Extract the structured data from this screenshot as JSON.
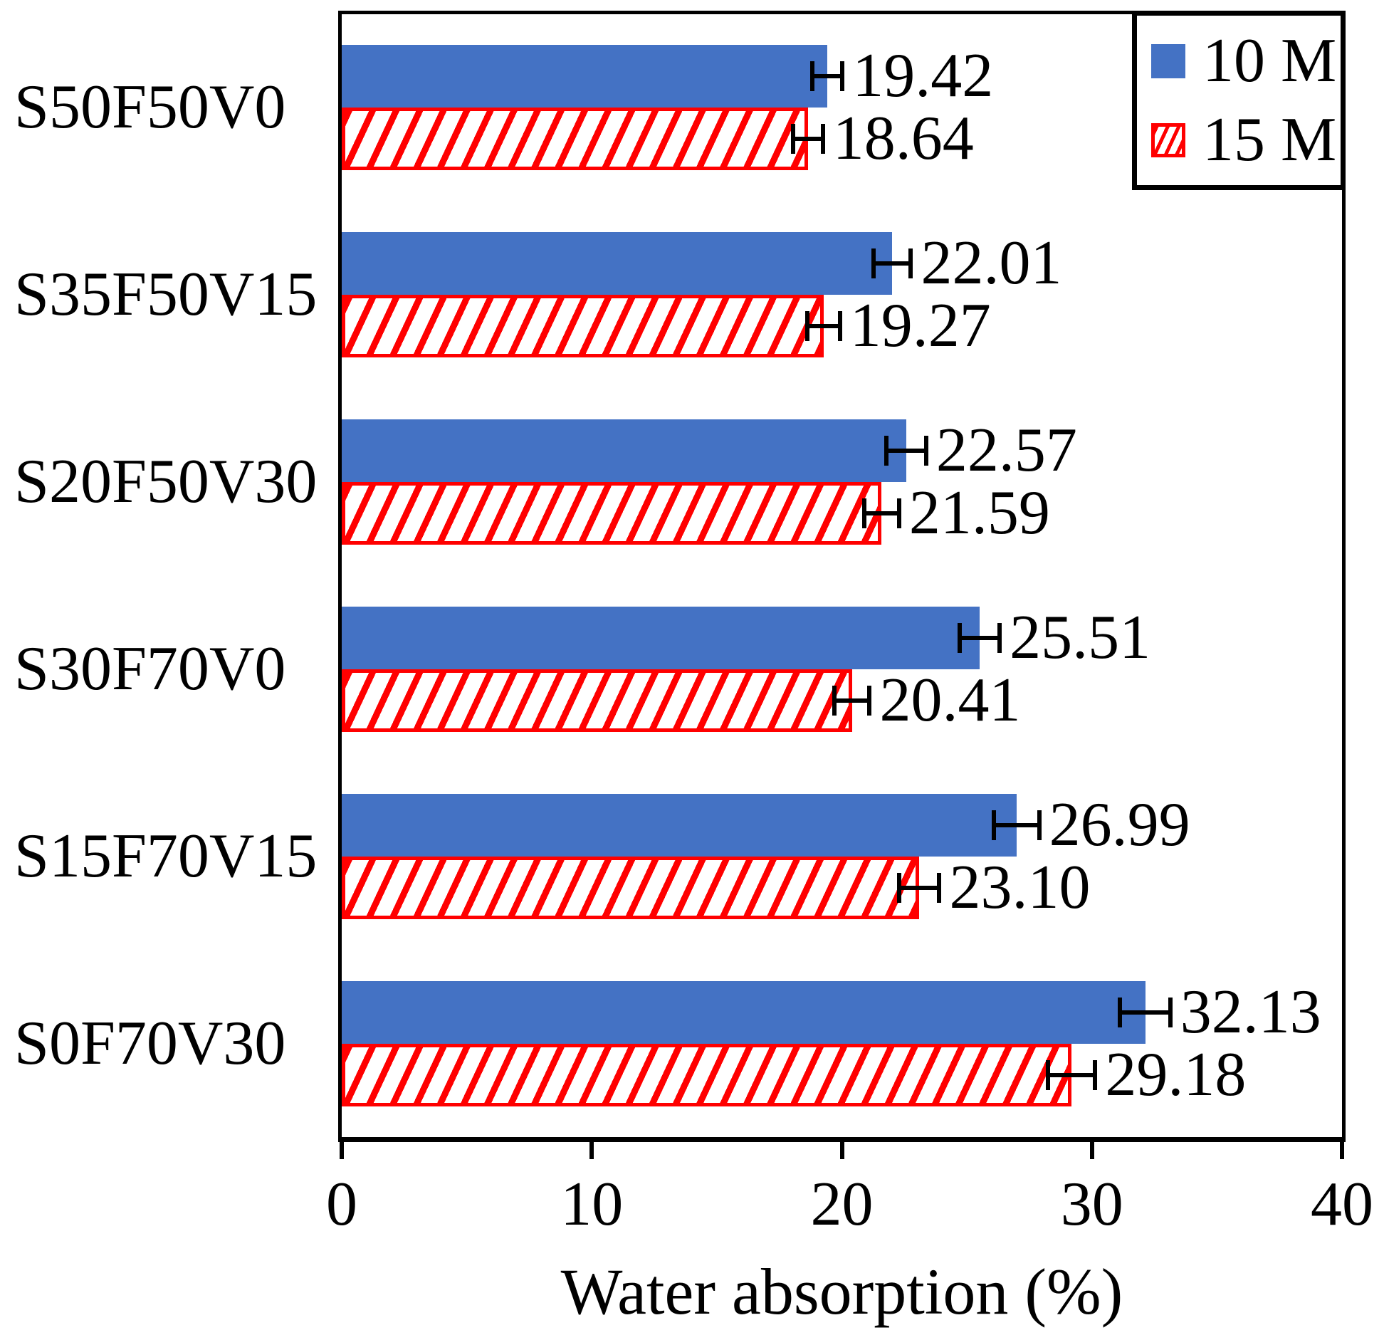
{
  "chart_data": {
    "type": "bar",
    "orientation": "horizontal",
    "xlabel": "Water absorption (%)",
    "xlim": [
      0,
      40
    ],
    "x_ticks": [
      "0",
      "10",
      "20",
      "30",
      "40"
    ],
    "grid": false,
    "legend_position": "top-right-inside",
    "error_bars": true,
    "categories": [
      "S50F50V0",
      "S35F50V15",
      "S20F50V30",
      "S30F70V0",
      "S15F70V15",
      "S0F70V30"
    ],
    "series": [
      {
        "name": "10 M",
        "style": "solid",
        "color": "#4472C4",
        "values": [
          19.42,
          22.01,
          22.57,
          25.51,
          26.99,
          32.13
        ],
        "labels": [
          "19.42",
          "22.01",
          "22.57",
          "25.51",
          "26.99",
          "32.13"
        ],
        "errors": [
          0.6,
          0.75,
          0.8,
          0.8,
          0.9,
          1.0
        ]
      },
      {
        "name": "15 M",
        "style": "diagonal-hatch",
        "color": "#FF0000",
        "values": [
          18.64,
          19.27,
          21.59,
          20.41,
          23.1,
          29.18
        ],
        "labels": [
          "18.64",
          "19.27",
          "21.59",
          "20.41",
          "23.10",
          "29.18"
        ],
        "errors": [
          0.6,
          0.65,
          0.7,
          0.7,
          0.8,
          0.95
        ]
      }
    ]
  },
  "colors": {
    "bar_blue": "#4472C4",
    "bar_red": "#FF0000",
    "axis": "#000000",
    "background": "#FFFFFF"
  }
}
